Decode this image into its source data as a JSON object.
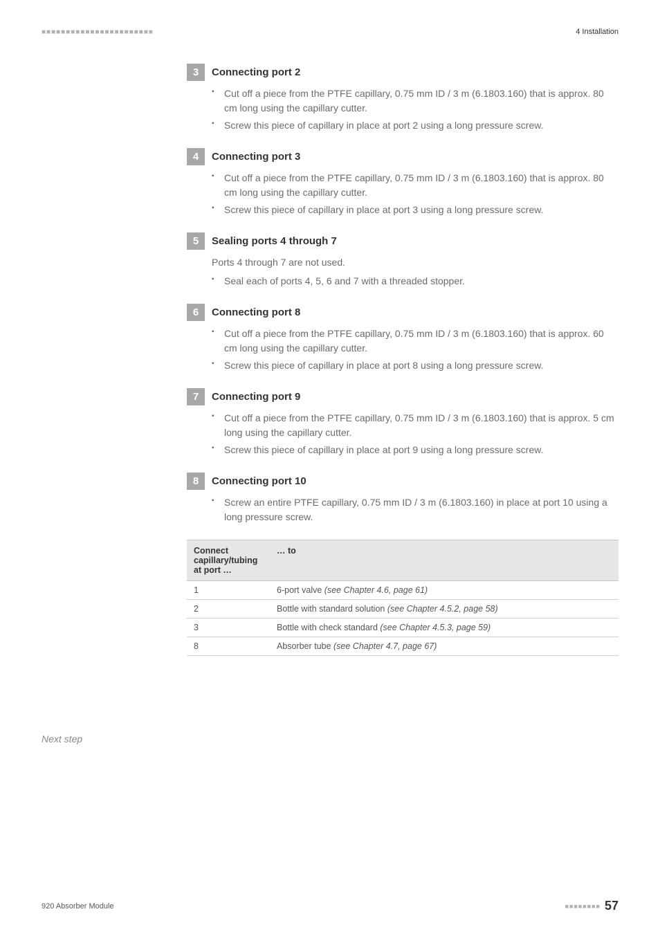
{
  "header": {
    "dashes": "■■■■■■■■■■■■■■■■■■■■■■■",
    "chapter": "4 Installation"
  },
  "steps": [
    {
      "num": "3",
      "title": "Connecting port 2",
      "intro": "",
      "items": [
        "Cut off a piece from the PTFE capillary, 0.75 mm ID / 3 m (6.1803.160) that is approx. 80 cm long using the capillary cutter.",
        "Screw this piece of capillary in place at port 2 using a long pressure screw."
      ]
    },
    {
      "num": "4",
      "title": "Connecting port 3",
      "intro": "",
      "items": [
        "Cut off a piece from the PTFE capillary, 0.75 mm ID / 3 m (6.1803.160) that is approx. 80 cm long using the capillary cutter.",
        "Screw this piece of capillary in place at port 3 using a long pressure screw."
      ]
    },
    {
      "num": "5",
      "title": "Sealing ports 4 through 7",
      "intro": "Ports 4 through 7 are not used.",
      "items": [
        "Seal each of ports 4, 5, 6 and 7 with a threaded stopper."
      ]
    },
    {
      "num": "6",
      "title": "Connecting port 8",
      "intro": "",
      "items": [
        "Cut off a piece from the PTFE capillary, 0.75 mm ID / 3 m (6.1803.160) that is approx. 60 cm long using the capillary cutter.",
        "Screw this piece of capillary in place at port 8 using a long pressure screw."
      ]
    },
    {
      "num": "7",
      "title": "Connecting port 9",
      "intro": "",
      "items": [
        "Cut off a piece from the PTFE capillary, 0.75 mm ID / 3 m (6.1803.160) that is approx. 5 cm long using the capillary cutter.",
        "Screw this piece of capillary in place at port 9 using a long pressure screw."
      ]
    },
    {
      "num": "8",
      "title": "Connecting port 10",
      "intro": "",
      "items": [
        "Screw an entire PTFE capillary, 0.75 mm ID / 3 m (6.1803.160) in place at port 10 using a long pressure screw."
      ]
    }
  ],
  "next_step_label": "Next step",
  "table": {
    "head": {
      "col1": "Connect capillary/tubing at port …",
      "col2": "… to"
    },
    "rows": [
      {
        "port": "1",
        "to_text": "6-port valve ",
        "to_ref": "(see Chapter 4.6, page 61)"
      },
      {
        "port": "2",
        "to_text": "Bottle with standard solution ",
        "to_ref": "(see Chapter 4.5.2, page 58)"
      },
      {
        "port": "3",
        "to_text": "Bottle with check standard ",
        "to_ref": "(see Chapter 4.5.3, page 59)"
      },
      {
        "port": "8",
        "to_text": "Absorber tube ",
        "to_ref": "(see Chapter 4.7, page 67)"
      }
    ]
  },
  "footer": {
    "left": "920 Absorber Module",
    "dashes": "■■■■■■■■",
    "page": "57"
  }
}
